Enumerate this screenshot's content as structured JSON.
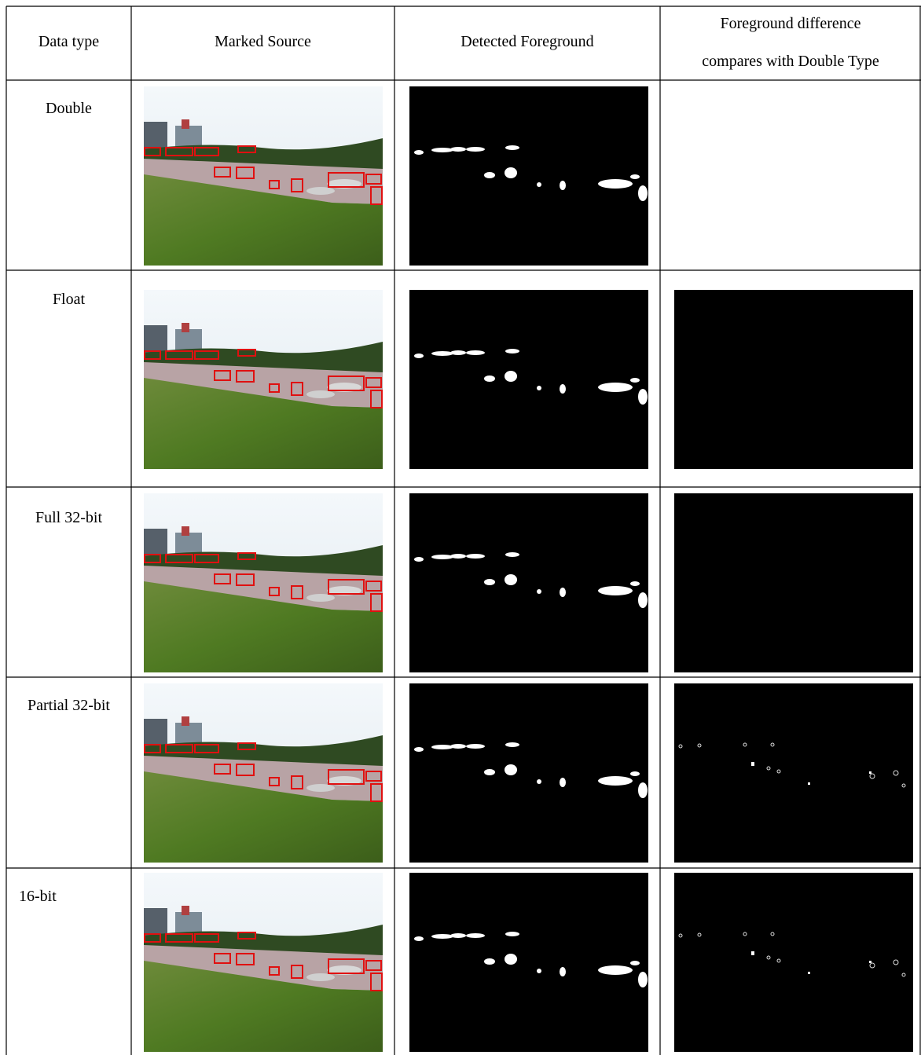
{
  "table": {
    "columns": [
      {
        "lines": [
          "Data type"
        ]
      },
      {
        "lines": [
          "Marked Source"
        ]
      },
      {
        "lines": [
          "Detected Foreground"
        ]
      },
      {
        "lines": [
          "Foreground difference",
          "compares with Double Type"
        ]
      }
    ],
    "rows": [
      "Double",
      "Float",
      "Full 32-bit",
      "Partial 32-bit",
      "16-bit"
    ]
  }
}
